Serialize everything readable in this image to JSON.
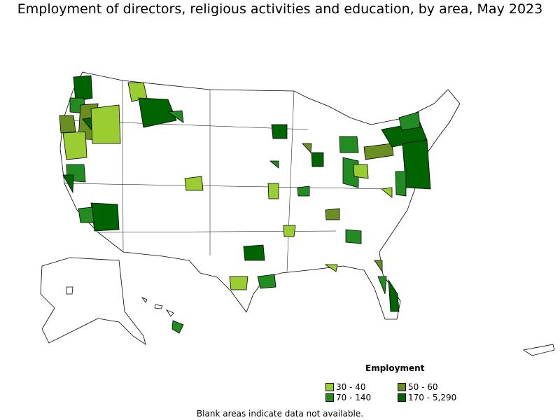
{
  "title": "Employment of directors, religious activities and education, by area, May 2023",
  "legend": {
    "title": "Employment",
    "items": [
      {
        "label": "30 - 40",
        "color": "#9acd32"
      },
      {
        "label": "50 - 60",
        "color": "#6b8e23"
      },
      {
        "label": "70 - 140",
        "color": "#228b22"
      },
      {
        "label": "170 - 5,290",
        "color": "#006400"
      }
    ]
  },
  "note": "Blank areas indicate data not available."
}
